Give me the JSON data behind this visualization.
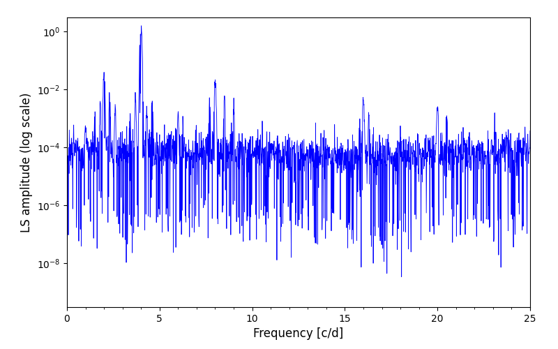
{
  "xlabel": "Frequency [c/d]",
  "ylabel": "LS amplitude (log scale)",
  "line_color": "#0000FF",
  "xlim": [
    0,
    25
  ],
  "ylim": [
    3e-10,
    3.0
  ],
  "figsize": [
    8.0,
    5.0
  ],
  "dpi": 100,
  "yscale": "log",
  "yticks": [
    1e-08,
    1e-06,
    0.0001,
    0.01,
    1.0
  ],
  "seed": 12345,
  "n_points": 2000,
  "background_color": "#ffffff"
}
